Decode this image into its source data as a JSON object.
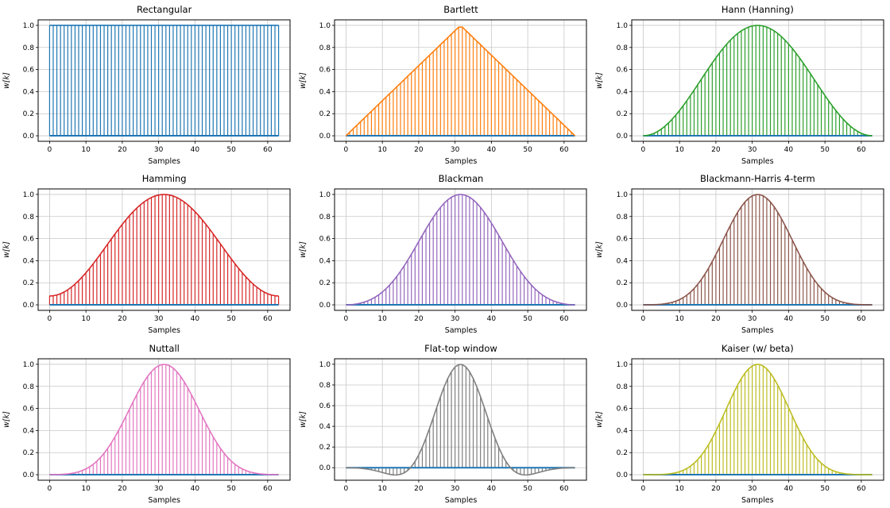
{
  "figure": {
    "background": "#ffffff",
    "grid": true,
    "legend": "none",
    "samples_range": [
      0,
      63
    ],
    "baseline_color": "#1f77b4",
    "grid_color": "#c8c8c8",
    "spine_color": "#000000"
  },
  "chart_data": [
    {
      "type": "stem",
      "title": "Rectangular",
      "color": "#1f77b4",
      "xlabel": "Samples",
      "ylabel": "w[k]",
      "n_samples": 64,
      "x_ticks": [
        0,
        10,
        20,
        30,
        40,
        50,
        60
      ],
      "y_ticks": [
        0.0,
        0.2,
        0.4,
        0.6,
        0.8,
        1.0
      ],
      "xlim": [
        -3.15,
        66.15
      ],
      "ylim": [
        -0.05,
        1.05
      ],
      "window": {
        "kind": "rect"
      }
    },
    {
      "type": "stem",
      "title": "Bartlett",
      "color": "#ff7f0e",
      "xlabel": "Samples",
      "ylabel": "w[k]",
      "n_samples": 64,
      "x_ticks": [
        0,
        10,
        20,
        30,
        40,
        50,
        60
      ],
      "y_ticks": [
        0.0,
        0.2,
        0.4,
        0.6,
        0.8,
        1.0
      ],
      "xlim": [
        -3.15,
        66.15
      ],
      "ylim": [
        -0.05,
        1.05
      ],
      "window": {
        "kind": "bartlett"
      }
    },
    {
      "type": "stem",
      "title": "Hann (Hanning)",
      "color": "#2ca02c",
      "xlabel": "Samples",
      "ylabel": "w[k]",
      "n_samples": 64,
      "x_ticks": [
        0,
        10,
        20,
        30,
        40,
        50,
        60
      ],
      "y_ticks": [
        0.0,
        0.2,
        0.4,
        0.6,
        0.8,
        1.0
      ],
      "xlim": [
        -3.15,
        66.15
      ],
      "ylim": [
        -0.05,
        1.05
      ],
      "window": {
        "kind": "cosine",
        "coeffs": [
          0.5,
          0.5
        ]
      }
    },
    {
      "type": "stem",
      "title": "Hamming",
      "color": "#d62728",
      "xlabel": "Samples",
      "ylabel": "w[k]",
      "n_samples": 64,
      "x_ticks": [
        0,
        10,
        20,
        30,
        40,
        50,
        60
      ],
      "y_ticks": [
        0.0,
        0.2,
        0.4,
        0.6,
        0.8,
        1.0
      ],
      "xlim": [
        -3.15,
        66.15
      ],
      "ylim": [
        -0.05,
        1.05
      ],
      "window": {
        "kind": "cosine",
        "coeffs": [
          0.54,
          0.46
        ]
      }
    },
    {
      "type": "stem",
      "title": "Blackman",
      "color": "#9467bd",
      "xlabel": "Samples",
      "ylabel": "w[k]",
      "n_samples": 64,
      "x_ticks": [
        0,
        10,
        20,
        30,
        40,
        50,
        60
      ],
      "y_ticks": [
        0.0,
        0.2,
        0.4,
        0.6,
        0.8,
        1.0
      ],
      "xlim": [
        -3.15,
        66.15
      ],
      "ylim": [
        -0.05,
        1.05
      ],
      "window": {
        "kind": "cosine",
        "coeffs": [
          0.42,
          0.5,
          0.08
        ]
      }
    },
    {
      "type": "stem",
      "title": "Blackmann-Harris 4-term",
      "color": "#8c564b",
      "xlabel": "Samples",
      "ylabel": "w[k]",
      "n_samples": 64,
      "x_ticks": [
        0,
        10,
        20,
        30,
        40,
        50,
        60
      ],
      "y_ticks": [
        0.0,
        0.2,
        0.4,
        0.6,
        0.8,
        1.0
      ],
      "xlim": [
        -3.15,
        66.15
      ],
      "ylim": [
        -0.05,
        1.05
      ],
      "window": {
        "kind": "cosine",
        "coeffs": [
          0.35875,
          0.48829,
          0.14128,
          0.01168
        ]
      }
    },
    {
      "type": "stem",
      "title": "Nuttall",
      "color": "#e377c2",
      "xlabel": "Samples",
      "ylabel": "w[k]",
      "n_samples": 64,
      "x_ticks": [
        0,
        10,
        20,
        30,
        40,
        50,
        60
      ],
      "y_ticks": [
        0.0,
        0.2,
        0.4,
        0.6,
        0.8,
        1.0
      ],
      "xlim": [
        -3.15,
        66.15
      ],
      "ylim": [
        -0.05,
        1.05
      ],
      "window": {
        "kind": "cosine",
        "coeffs": [
          0.3635819,
          0.4891775,
          0.1365995,
          0.0106411
        ]
      }
    },
    {
      "type": "stem",
      "title": "Flat-top window",
      "color": "#7f7f7f",
      "xlabel": "Samples",
      "ylabel": "w[k]",
      "n_samples": 64,
      "x_ticks": [
        0,
        10,
        20,
        30,
        40,
        50,
        60
      ],
      "y_ticks": [
        0.0,
        0.2,
        0.4,
        0.6,
        0.8,
        1.0
      ],
      "xlim": [
        -3.15,
        66.15
      ],
      "ylim": [
        -0.121,
        1.053
      ],
      "window": {
        "kind": "cosine",
        "coeffs": [
          0.21557895,
          0.41663158,
          0.277263158,
          0.083578947,
          0.006947368
        ]
      }
    },
    {
      "type": "stem",
      "title": "Kaiser (w/ beta)",
      "color": "#bcbd22",
      "xlabel": "Samples",
      "ylabel": "w[k]",
      "n_samples": 64,
      "x_ticks": [
        0,
        10,
        20,
        30,
        40,
        50,
        60
      ],
      "y_ticks": [
        0.0,
        0.2,
        0.4,
        0.6,
        0.8,
        1.0
      ],
      "xlim": [
        -3.15,
        66.15
      ],
      "ylim": [
        -0.05,
        1.05
      ],
      "window": {
        "kind": "kaiser",
        "beta": 14
      }
    }
  ]
}
